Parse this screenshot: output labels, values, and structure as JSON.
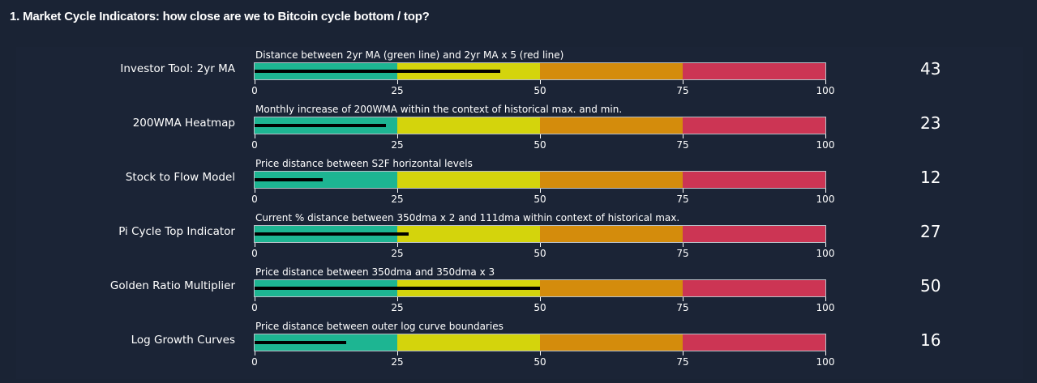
{
  "title": "1. Market Cycle Indicators: how close are we to Bitcoin cycle bottom / top?",
  "chart_data": {
    "type": "bar",
    "subtype": "bullet",
    "range": [
      0,
      100
    ],
    "ticks": [
      0,
      25,
      50,
      75,
      100
    ],
    "bands": [
      {
        "from": 0,
        "to": 25,
        "color": "#1db592"
      },
      {
        "from": 25,
        "to": 50,
        "color": "#d4d40c"
      },
      {
        "from": 50,
        "to": 75,
        "color": "#d48c0c"
      },
      {
        "from": 75,
        "to": 100,
        "color": "#cc3554"
      }
    ],
    "indicators": [
      {
        "name": "Investor Tool: 2yr MA",
        "description": "Distance between 2yr MA (green line) and 2yr MA x 5 (red line)",
        "value": 43
      },
      {
        "name": "200WMA Heatmap",
        "description": "Monthly increase of 200WMA within the context of historical max. and min.",
        "value": 23
      },
      {
        "name": "Stock to Flow Model",
        "description": "Price distance between S2F horizontal levels",
        "value": 12
      },
      {
        "name": "Pi Cycle Top Indicator",
        "description": "Current % distance between 350dma x 2 and 111dma within context of historical max.",
        "value": 27
      },
      {
        "name": "Golden Ratio Multiplier",
        "description": "Price distance between 350dma and 350dma x 3",
        "value": 50
      },
      {
        "name": "Log Growth Curves",
        "description": "Price distance between outer log curve boundaries",
        "value": 16
      }
    ]
  }
}
